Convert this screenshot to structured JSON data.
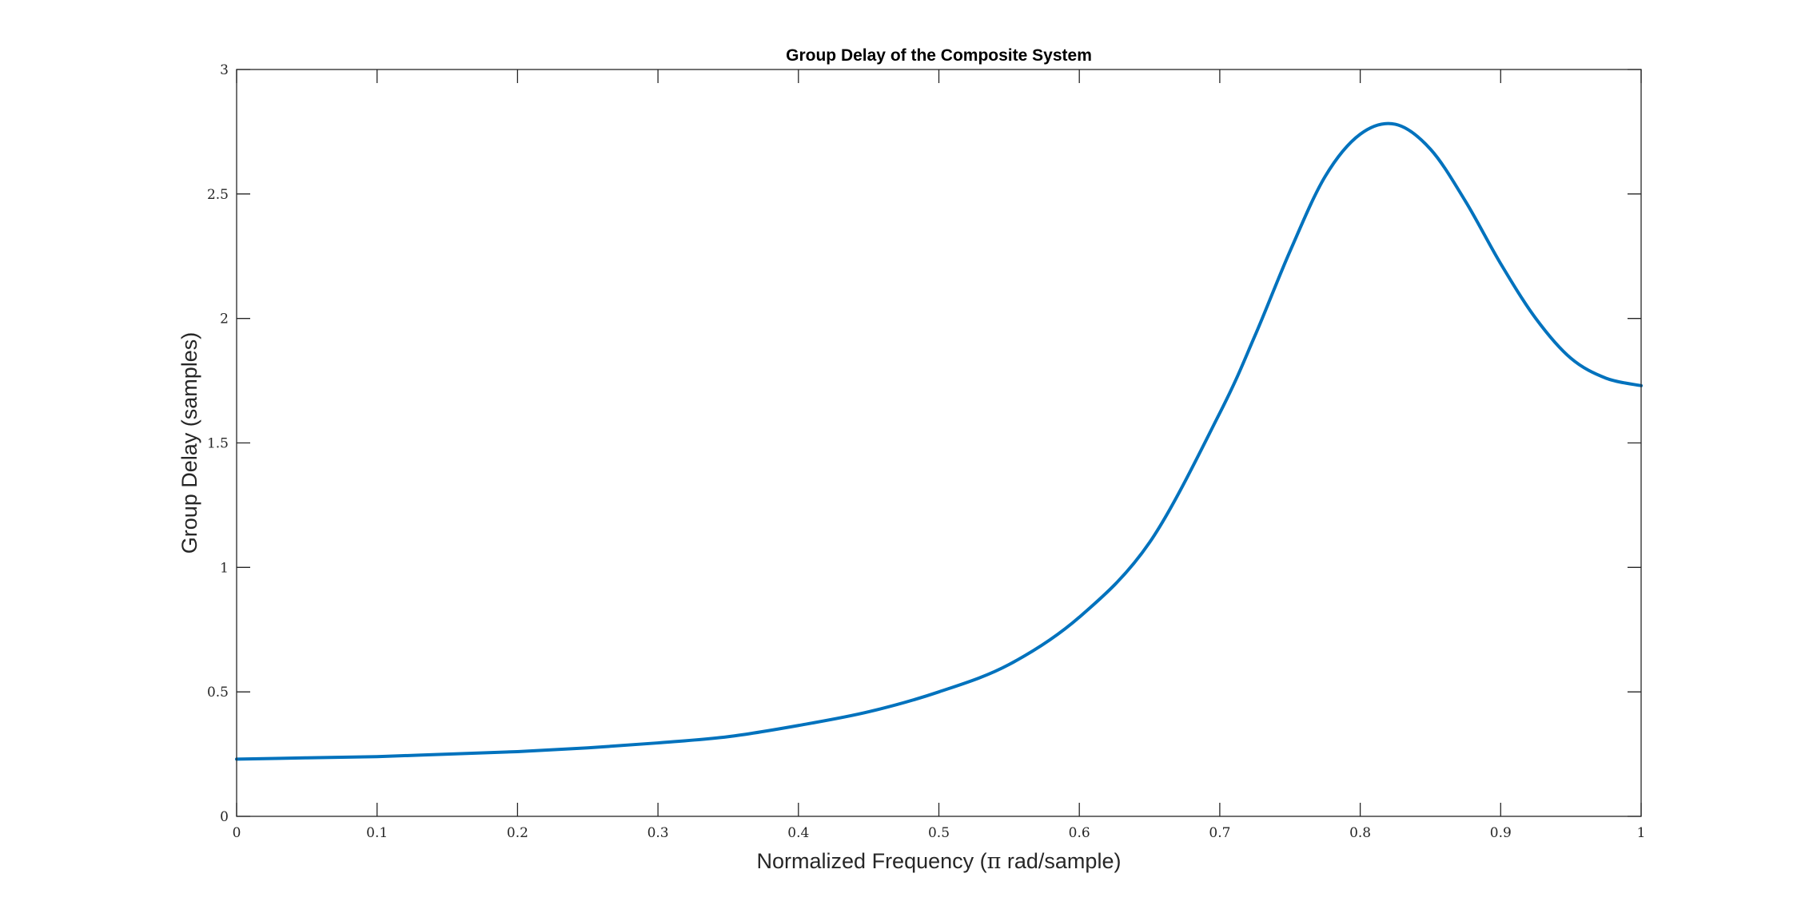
{
  "chart_data": {
    "type": "line",
    "title": "Group Delay of the Composite System",
    "xlabel_prefix": "Normalized Frequency (",
    "xlabel_pi": "π",
    "xlabel_suffix": " rad/sample)",
    "ylabel": "Group Delay (samples)",
    "xlim": [
      0,
      1
    ],
    "ylim": [
      0,
      3
    ],
    "grid": false,
    "box": true,
    "x_ticks": [
      "0",
      "0.1",
      "0.2",
      "0.3",
      "0.4",
      "0.5",
      "0.6",
      "0.7",
      "0.8",
      "0.9",
      "1"
    ],
    "y_ticks": [
      "0",
      "0.5",
      "1",
      "1.5",
      "2",
      "2.5",
      "3"
    ],
    "series": [
      {
        "color": "#0072BD",
        "x": [
          0,
          0.05,
          0.1,
          0.15,
          0.2,
          0.25,
          0.3,
          0.35,
          0.4,
          0.45,
          0.5,
          0.55,
          0.6,
          0.65,
          0.7,
          0.725,
          0.75,
          0.775,
          0.8,
          0.825,
          0.85,
          0.875,
          0.9,
          0.925,
          0.95,
          0.975,
          1.0
        ],
        "y": [
          0.23,
          0.235,
          0.24,
          0.25,
          0.26,
          0.275,
          0.295,
          0.32,
          0.365,
          0.42,
          0.5,
          0.61,
          0.8,
          1.1,
          1.62,
          1.93,
          2.27,
          2.57,
          2.74,
          2.78,
          2.68,
          2.47,
          2.22,
          2.0,
          1.84,
          1.76,
          1.73
        ]
      }
    ]
  }
}
